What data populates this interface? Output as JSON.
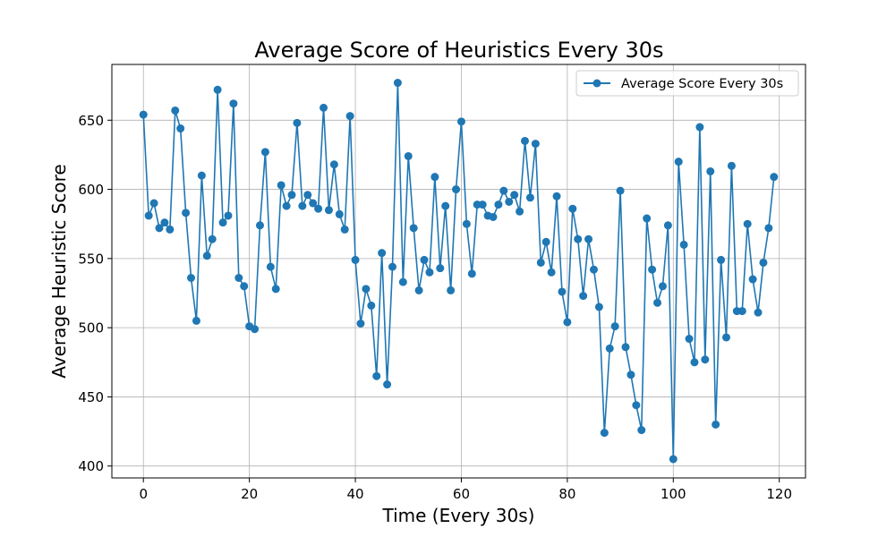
{
  "chart_data": {
    "type": "line",
    "title": "Average Score of Heuristics Every 30s",
    "xlabel": "Time (Every 30s)",
    "ylabel": "Average Heuristic Score",
    "xlim": [
      -5.95,
      124.95
    ],
    "ylim": [
      391.4,
      690.3
    ],
    "xticks": [
      0,
      20,
      40,
      60,
      80,
      100,
      120
    ],
    "yticks": [
      400,
      450,
      500,
      550,
      600,
      650
    ],
    "grid": true,
    "legend_position": "top-right",
    "series": [
      {
        "name": "Average Score Every 30s",
        "color": "#1f77b4",
        "marker": "circle",
        "x": [
          0,
          1,
          2,
          3,
          4,
          5,
          6,
          7,
          8,
          9,
          10,
          11,
          12,
          13,
          14,
          15,
          16,
          17,
          18,
          19,
          20,
          21,
          22,
          23,
          24,
          25,
          26,
          27,
          28,
          29,
          30,
          31,
          32,
          33,
          34,
          35,
          36,
          37,
          38,
          39,
          40,
          41,
          42,
          43,
          44,
          45,
          46,
          47,
          48,
          49,
          50,
          51,
          52,
          53,
          54,
          55,
          56,
          57,
          58,
          59,
          60,
          61,
          62,
          63,
          64,
          65,
          66,
          67,
          68,
          69,
          70,
          71,
          72,
          73,
          74,
          75,
          76,
          77,
          78,
          79,
          80,
          81,
          82,
          83,
          84,
          85,
          86,
          87,
          88,
          89,
          90,
          91,
          92,
          93,
          94,
          95,
          96,
          97,
          98,
          99,
          100,
          101,
          102,
          103,
          104,
          105,
          106,
          107,
          108,
          109,
          110,
          111,
          112,
          113,
          114,
          115,
          116,
          117,
          118,
          119
        ],
        "values": [
          654,
          581,
          590,
          572,
          576,
          571,
          657,
          644,
          583,
          536,
          505,
          610,
          552,
          564,
          672,
          576,
          581,
          662,
          536,
          530,
          501,
          499,
          574,
          627,
          544,
          528,
          603,
          588,
          596,
          648,
          588,
          596,
          590,
          586,
          659,
          585,
          618,
          582,
          571,
          653,
          549,
          503,
          528,
          516,
          465,
          554,
          459,
          544,
          677,
          533,
          624,
          572,
          527,
          549,
          540,
          609,
          543,
          588,
          527,
          600,
          649,
          575,
          539,
          589,
          589,
          581,
          580,
          589,
          599,
          591,
          596,
          584,
          635,
          594,
          633,
          547,
          562,
          540,
          595,
          526,
          504,
          586,
          564,
          523,
          564,
          542,
          515,
          424,
          485,
          501,
          599,
          486,
          466,
          444,
          426,
          579,
          542,
          518,
          530,
          574,
          405,
          620,
          560,
          492,
          475,
          645,
          477,
          613,
          430,
          549,
          493,
          617,
          512,
          512,
          575,
          535,
          511,
          547,
          572,
          609
        ]
      }
    ]
  }
}
